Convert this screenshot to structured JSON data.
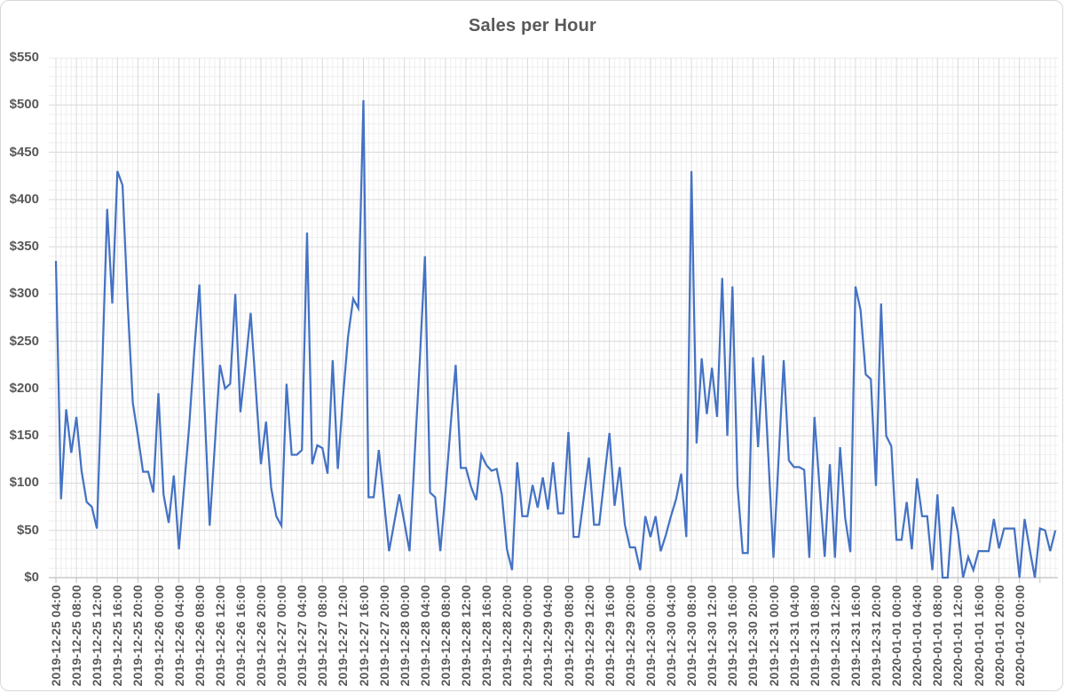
{
  "window": {
    "background": "#ffffff",
    "frame_border_color": "#d8d8d8"
  },
  "styles": {
    "accent_line_color": "#4472C4",
    "label_color": "#595959",
    "axis_line_color": "#bfbfbf",
    "major_grid_color": "#d9d9d9",
    "minor_grid_color": "#efefef"
  },
  "chart_data": {
    "type": "line",
    "title": "Sales per Hour",
    "xlabel": "",
    "ylabel": "",
    "legend": "none",
    "grid": true,
    "ylim": [
      0,
      550
    ],
    "y_major_step": 50,
    "y_minor_step": 10,
    "y_tick_labels": [
      "$0",
      "$50",
      "$100",
      "$150",
      "$200",
      "$250",
      "$300",
      "$350",
      "$400",
      "$450",
      "$500",
      "$550"
    ],
    "x_start": "2019-12-25 04:00",
    "x_interval_hours": 1,
    "x_tick_every": 4,
    "x_tick_labels": [
      "2019-12-25 04:00",
      "2019-12-25 08:00",
      "2019-12-25 12:00",
      "2019-12-25 16:00",
      "2019-12-25 20:00",
      "2019-12-26 00:00",
      "2019-12-26 04:00",
      "2019-12-26 08:00",
      "2019-12-26 12:00",
      "2019-12-26 16:00",
      "2019-12-26 20:00",
      "2019-12-27 00:00",
      "2019-12-27 04:00",
      "2019-12-27 08:00",
      "2019-12-27 12:00",
      "2019-12-27 16:00",
      "2019-12-27 20:00",
      "2019-12-28 00:00",
      "2019-12-28 04:00",
      "2019-12-28 08:00",
      "2019-12-28 12:00",
      "2019-12-28 16:00",
      "2019-12-28 20:00",
      "2019-12-29 00:00",
      "2019-12-29 04:00",
      "2019-12-29 08:00",
      "2019-12-29 12:00",
      "2019-12-29 16:00",
      "2019-12-29 20:00",
      "2019-12-30 00:00",
      "2019-12-30 04:00",
      "2019-12-30 08:00",
      "2019-12-30 12:00",
      "2019-12-30 16:00",
      "2019-12-30 20:00",
      "2019-12-31 00:00",
      "2019-12-31 04:00",
      "2019-12-31 08:00",
      "2019-12-31 12:00",
      "2019-12-31 16:00",
      "2019-12-31 20:00",
      "2020-01-01 00:00",
      "2020-01-01 04:00",
      "2020-01-01 08:00",
      "2020-01-01 12:00",
      "2020-01-01 16:00",
      "2020-01-01 20:00",
      "2020-01-02 00:00"
    ],
    "values": [
      335,
      83,
      178,
      132,
      170,
      113,
      80,
      75,
      52,
      215,
      390,
      290,
      430,
      415,
      290,
      185,
      150,
      112,
      112,
      90,
      195,
      88,
      58,
      108,
      30,
      95,
      160,
      240,
      310,
      180,
      55,
      140,
      225,
      200,
      205,
      300,
      175,
      225,
      280,
      200,
      120,
      165,
      95,
      65,
      55,
      205,
      130,
      130,
      135,
      365,
      120,
      140,
      137,
      110,
      230,
      115,
      190,
      255,
      295,
      285,
      505,
      85,
      85,
      135,
      82,
      28,
      58,
      88,
      58,
      28,
      130,
      230,
      340,
      90,
      85,
      28,
      90,
      160,
      225,
      116,
      116,
      96,
      82,
      130,
      119,
      113,
      115,
      88,
      30,
      8,
      122,
      65,
      65,
      98,
      74,
      106,
      72,
      122,
      68,
      68,
      154,
      43,
      43,
      85,
      127,
      56,
      56,
      105,
      153,
      76,
      117,
      56,
      32,
      32,
      8,
      65,
      43,
      65,
      28,
      45,
      65,
      83,
      110,
      43,
      430,
      142,
      232,
      173,
      222,
      170,
      317,
      150,
      308,
      97,
      26,
      26,
      233,
      138,
      235,
      128,
      21,
      125,
      230,
      124,
      117,
      117,
      114,
      21,
      170,
      95,
      22,
      120,
      21,
      138,
      63,
      27,
      308,
      283,
      215,
      210,
      97,
      290,
      150,
      139,
      40,
      40,
      80,
      30,
      105,
      65,
      65,
      8,
      88,
      0,
      0,
      75,
      48,
      0,
      22,
      8,
      28,
      28,
      28,
      62,
      31,
      52,
      52,
      52,
      0,
      62,
      30,
      0,
      52,
      50,
      28,
      50
    ]
  }
}
